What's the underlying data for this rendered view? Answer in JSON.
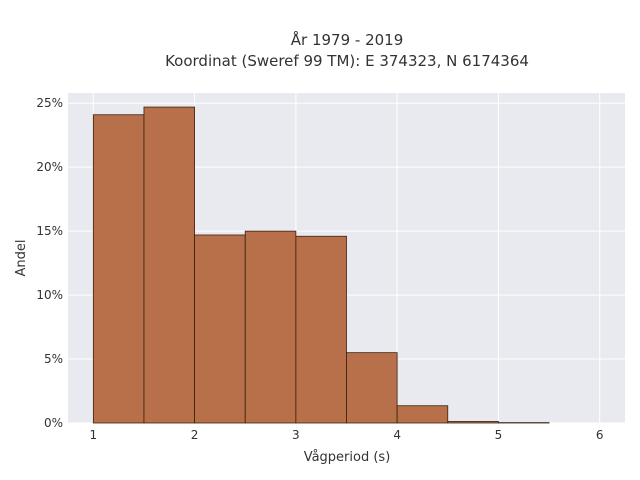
{
  "chart_data": {
    "type": "bar",
    "title_line1": "År 1979 - 2019",
    "title_line2": "Koordinat (Sweref 99 TM): E 374323, N 6174364",
    "xlabel": "Vågperiod (s)",
    "ylabel": "Andel",
    "bin_edges": [
      1,
      1.5,
      2,
      2.5,
      3,
      3.5,
      4,
      4.5,
      5,
      5.5
    ],
    "values": [
      24.1,
      24.7,
      14.7,
      15.0,
      14.6,
      5.5,
      1.35,
      0.12,
      0.03
    ],
    "xlim": [
      0.75,
      6.25
    ],
    "ylim": [
      0,
      25.8
    ],
    "xticks": [
      1,
      2,
      3,
      4,
      5,
      6
    ],
    "xtick_labels": [
      "1",
      "2",
      "3",
      "4",
      "5",
      "6"
    ],
    "yticks": [
      0,
      5,
      10,
      15,
      20,
      25
    ],
    "ytick_labels": [
      "0%",
      "5%",
      "10%",
      "15%",
      "20%",
      "25%"
    ],
    "grid": true,
    "bar_color": "#b8704a",
    "bar_edge_color": "#3a2010",
    "background_color": "#e9e9f0"
  }
}
